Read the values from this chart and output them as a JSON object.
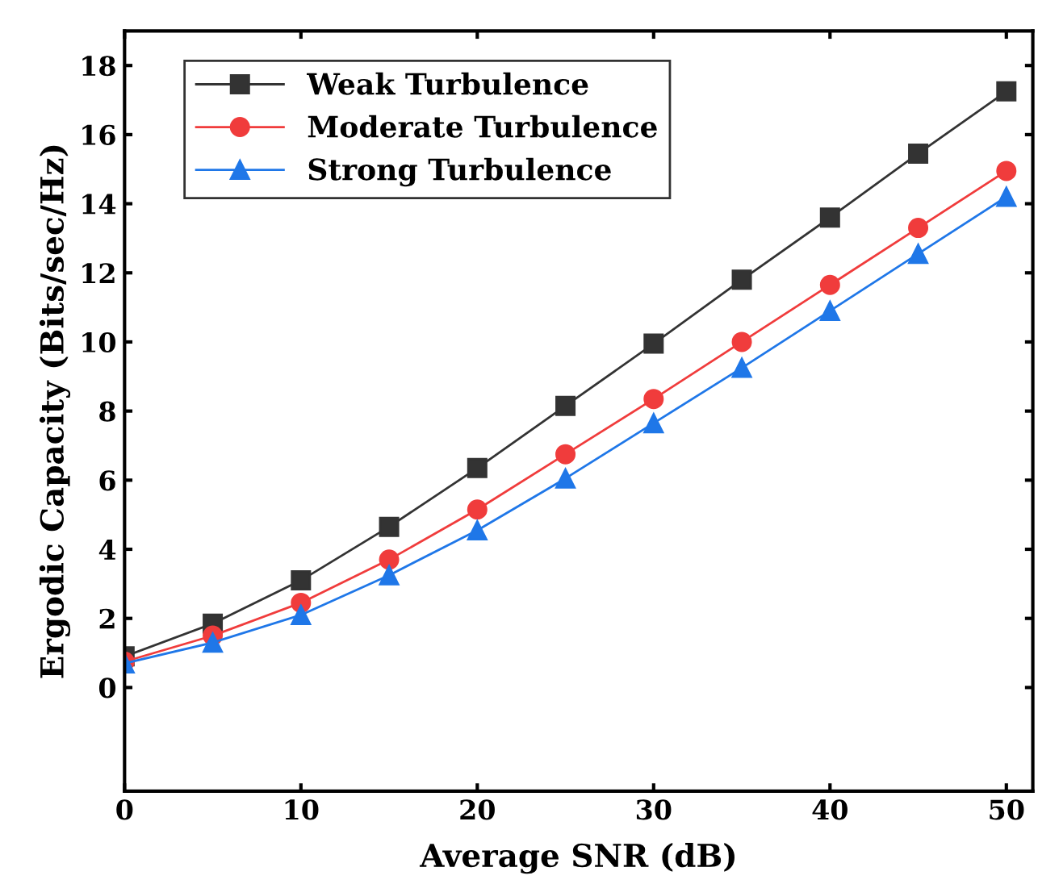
{
  "chart_data": {
    "type": "line",
    "xlabel": "Average SNR (dB)",
    "ylabel": "Ergodic Capacity (Bits/sec/Hz)",
    "x": [
      0,
      5,
      10,
      15,
      20,
      25,
      30,
      35,
      40,
      45,
      50
    ],
    "series": [
      {
        "name": "Weak Turbulence",
        "color": "#333333",
        "marker": "square",
        "values": [
          0.9,
          1.85,
          3.1,
          4.65,
          6.35,
          8.15,
          9.95,
          11.8,
          13.6,
          15.45,
          17.25
        ]
      },
      {
        "name": "Moderate Turbulence",
        "color": "#f03c3c",
        "marker": "circle",
        "values": [
          0.75,
          1.5,
          2.45,
          3.7,
          5.15,
          6.75,
          8.35,
          10.0,
          11.65,
          13.3,
          14.95
        ]
      },
      {
        "name": "Strong Turbulence",
        "color": "#1f77e8",
        "marker": "triangle",
        "values": [
          0.7,
          1.3,
          2.1,
          3.25,
          4.55,
          6.05,
          7.65,
          9.25,
          10.9,
          12.55,
          14.2
        ]
      }
    ],
    "xlim": [
      0,
      51.5
    ],
    "xticks": [
      0,
      10,
      20,
      30,
      40,
      50
    ],
    "ylim": [
      -3,
      19
    ],
    "yticks": [
      0,
      2,
      4,
      6,
      8,
      10,
      12,
      14,
      16,
      18
    ],
    "grid": false,
    "legend": "top left",
    "line_style": "solid"
  }
}
